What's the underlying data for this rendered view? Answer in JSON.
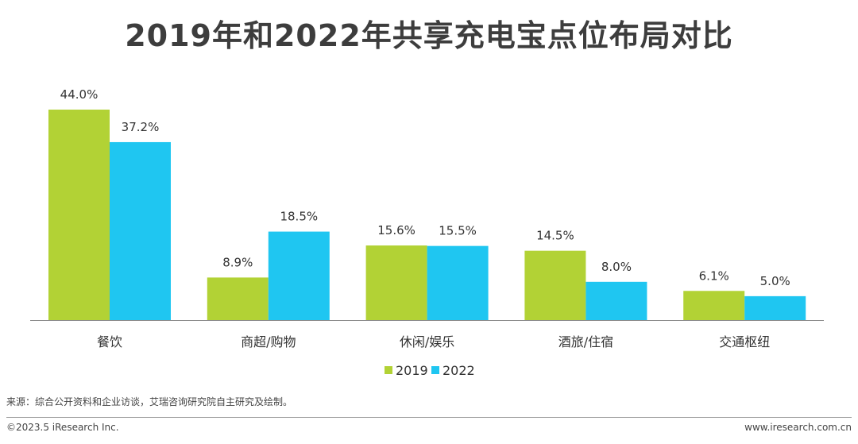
{
  "title": "2019年和2022年共享充电宝点位布局对比",
  "source": "来源：综合公开资料和企业访谈，艾瑞咨询研究院自主研究及绘制。",
  "footer": {
    "copyright": "©2023.5 iResearch Inc.",
    "website": "www.iresearch.com.cn"
  },
  "colors": {
    "s2019": "#B2D235",
    "s2022": "#1FC6F1",
    "axis": "#8c8c8c"
  },
  "chart_data": {
    "type": "bar",
    "title": "2019年和2022年共享充电宝点位布局对比",
    "categories": [
      "餐饮",
      "商超/购物",
      "休闲/娱乐",
      "酒旅/住宿",
      "交通枢纽"
    ],
    "series": [
      {
        "name": "2019",
        "values": [
          44.0,
          8.9,
          15.6,
          14.5,
          6.1
        ],
        "labels": [
          "44.0%",
          "8.9%",
          "15.6%",
          "14.5%",
          "6.1%"
        ]
      },
      {
        "name": "2022",
        "values": [
          37.2,
          18.5,
          15.5,
          8.0,
          5.0
        ],
        "labels": [
          "37.2%",
          "18.5%",
          "15.5%",
          "8.0%",
          "5.0%"
        ]
      }
    ],
    "ylim": [
      0,
      44.0
    ],
    "grid": false,
    "legend": "bottom-center"
  }
}
